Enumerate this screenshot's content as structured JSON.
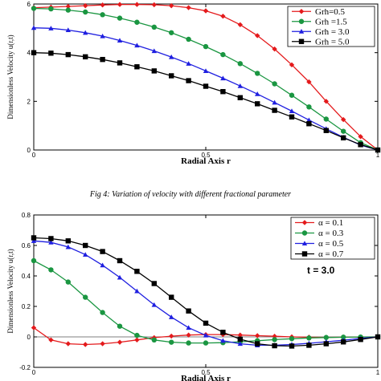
{
  "caption": "Fig 4: Variation of velocity with different fractional parameter",
  "chart_data": [
    {
      "type": "line",
      "title": "",
      "xlabel": "Radial Axis r",
      "ylabel": "Dimensionless Velocity u(r,t)",
      "xlim": [
        0,
        1
      ],
      "ylim": [
        0,
        6
      ],
      "xticks": [
        "0",
        "0.5",
        "1"
      ],
      "yticks": [
        "0",
        "2",
        "4",
        "6"
      ],
      "legend_position": "top-right",
      "series": [
        {
          "name": "Grh=0.5",
          "color": "#e41a1c",
          "marker": "diamond",
          "x": [
            0,
            0.05,
            0.1,
            0.15,
            0.2,
            0.25,
            0.3,
            0.35,
            0.4,
            0.45,
            0.5,
            0.55,
            0.6,
            0.65,
            0.7,
            0.75,
            0.8,
            0.85,
            0.9,
            0.95,
            1.0
          ],
          "y": [
            5.85,
            5.87,
            5.9,
            5.93,
            5.96,
            5.98,
            5.98,
            5.97,
            5.93,
            5.85,
            5.72,
            5.5,
            5.15,
            4.7,
            4.15,
            3.5,
            2.8,
            2.0,
            1.25,
            0.55,
            0.0
          ]
        },
        {
          "name": "Grh =1.5",
          "color": "#1a9641",
          "marker": "circle",
          "x": [
            0,
            0.05,
            0.1,
            0.15,
            0.2,
            0.25,
            0.3,
            0.35,
            0.4,
            0.45,
            0.5,
            0.55,
            0.6,
            0.65,
            0.7,
            0.75,
            0.8,
            0.85,
            0.9,
            0.95,
            1.0
          ],
          "y": [
            5.82,
            5.8,
            5.75,
            5.67,
            5.56,
            5.42,
            5.25,
            5.05,
            4.82,
            4.55,
            4.25,
            3.92,
            3.55,
            3.15,
            2.72,
            2.25,
            1.77,
            1.27,
            0.77,
            0.3,
            0.0
          ]
        },
        {
          "name": "Grh = 3.0",
          "color": "#1f1fe0",
          "marker": "triangle",
          "x": [
            0,
            0.05,
            0.1,
            0.15,
            0.2,
            0.25,
            0.3,
            0.35,
            0.4,
            0.45,
            0.5,
            0.55,
            0.6,
            0.65,
            0.7,
            0.75,
            0.8,
            0.85,
            0.9,
            0.95,
            1.0
          ],
          "y": [
            5.02,
            5.0,
            4.93,
            4.82,
            4.68,
            4.5,
            4.3,
            4.07,
            3.82,
            3.55,
            3.25,
            2.95,
            2.63,
            2.3,
            1.95,
            1.6,
            1.23,
            0.87,
            0.52,
            0.2,
            0.0
          ]
        },
        {
          "name": "Grh = 5.0",
          "color": "#000000",
          "marker": "square",
          "x": [
            0,
            0.05,
            0.1,
            0.15,
            0.2,
            0.25,
            0.3,
            0.35,
            0.4,
            0.45,
            0.5,
            0.55,
            0.6,
            0.65,
            0.7,
            0.75,
            0.8,
            0.85,
            0.9,
            0.95,
            1.0
          ],
          "y": [
            4.0,
            3.98,
            3.92,
            3.83,
            3.72,
            3.58,
            3.42,
            3.25,
            3.05,
            2.85,
            2.62,
            2.4,
            2.15,
            1.9,
            1.63,
            1.36,
            1.08,
            0.8,
            0.5,
            0.22,
            0.0
          ]
        }
      ]
    },
    {
      "type": "line",
      "title": "",
      "annotation": "t = 3.0",
      "xlabel": "Radial Axis r",
      "ylabel": "Dimensionless Velocity u(r,t)",
      "xlim": [
        0,
        1
      ],
      "ylim": [
        -0.2,
        0.8
      ],
      "xticks": [
        "0",
        "0.5",
        "1"
      ],
      "yticks": [
        "-0.2",
        "0",
        "0.2",
        "0.4",
        "0.6",
        "0.8"
      ],
      "legend_position": "top-right",
      "series": [
        {
          "name": "α = 0.1",
          "color": "#e41a1c",
          "marker": "diamond",
          "x": [
            0,
            0.05,
            0.1,
            0.15,
            0.2,
            0.25,
            0.3,
            0.35,
            0.4,
            0.45,
            0.5,
            0.55,
            0.6,
            0.65,
            0.7,
            0.75,
            0.8,
            0.85,
            0.9,
            0.95,
            1.0
          ],
          "y": [
            0.06,
            -0.02,
            -0.045,
            -0.05,
            -0.045,
            -0.035,
            -0.02,
            -0.005,
            0.005,
            0.012,
            0.015,
            0.015,
            0.012,
            0.008,
            0.004,
            0.0,
            -0.002,
            -0.003,
            -0.002,
            -0.001,
            0.0
          ]
        },
        {
          "name": "α = 0.3",
          "color": "#1a9641",
          "marker": "circle",
          "x": [
            0,
            0.05,
            0.1,
            0.15,
            0.2,
            0.25,
            0.3,
            0.35,
            0.4,
            0.45,
            0.5,
            0.55,
            0.6,
            0.65,
            0.7,
            0.75,
            0.8,
            0.85,
            0.9,
            0.95,
            1.0
          ],
          "y": [
            0.5,
            0.44,
            0.36,
            0.26,
            0.16,
            0.07,
            0.01,
            -0.02,
            -0.035,
            -0.04,
            -0.04,
            -0.038,
            -0.032,
            -0.025,
            -0.018,
            -0.012,
            -0.007,
            -0.004,
            -0.002,
            -0.001,
            0.0
          ]
        },
        {
          "name": "α = 0.5",
          "color": "#1f1fe0",
          "marker": "triangle",
          "x": [
            0,
            0.05,
            0.1,
            0.15,
            0.2,
            0.25,
            0.3,
            0.35,
            0.4,
            0.45,
            0.5,
            0.55,
            0.6,
            0.65,
            0.7,
            0.75,
            0.8,
            0.85,
            0.9,
            0.95,
            1.0
          ],
          "y": [
            0.63,
            0.62,
            0.59,
            0.54,
            0.47,
            0.39,
            0.3,
            0.21,
            0.13,
            0.06,
            0.01,
            -0.025,
            -0.045,
            -0.055,
            -0.055,
            -0.05,
            -0.042,
            -0.032,
            -0.022,
            -0.01,
            0.0
          ]
        },
        {
          "name": "α = 0.7",
          "color": "#000000",
          "marker": "square",
          "x": [
            0,
            0.05,
            0.1,
            0.15,
            0.2,
            0.25,
            0.3,
            0.35,
            0.4,
            0.45,
            0.5,
            0.55,
            0.6,
            0.65,
            0.7,
            0.75,
            0.8,
            0.85,
            0.9,
            0.95,
            1.0
          ],
          "y": [
            0.65,
            0.645,
            0.63,
            0.6,
            0.56,
            0.5,
            0.43,
            0.35,
            0.26,
            0.17,
            0.09,
            0.03,
            -0.015,
            -0.045,
            -0.058,
            -0.06,
            -0.055,
            -0.045,
            -0.033,
            -0.017,
            0.0
          ]
        }
      ]
    }
  ]
}
